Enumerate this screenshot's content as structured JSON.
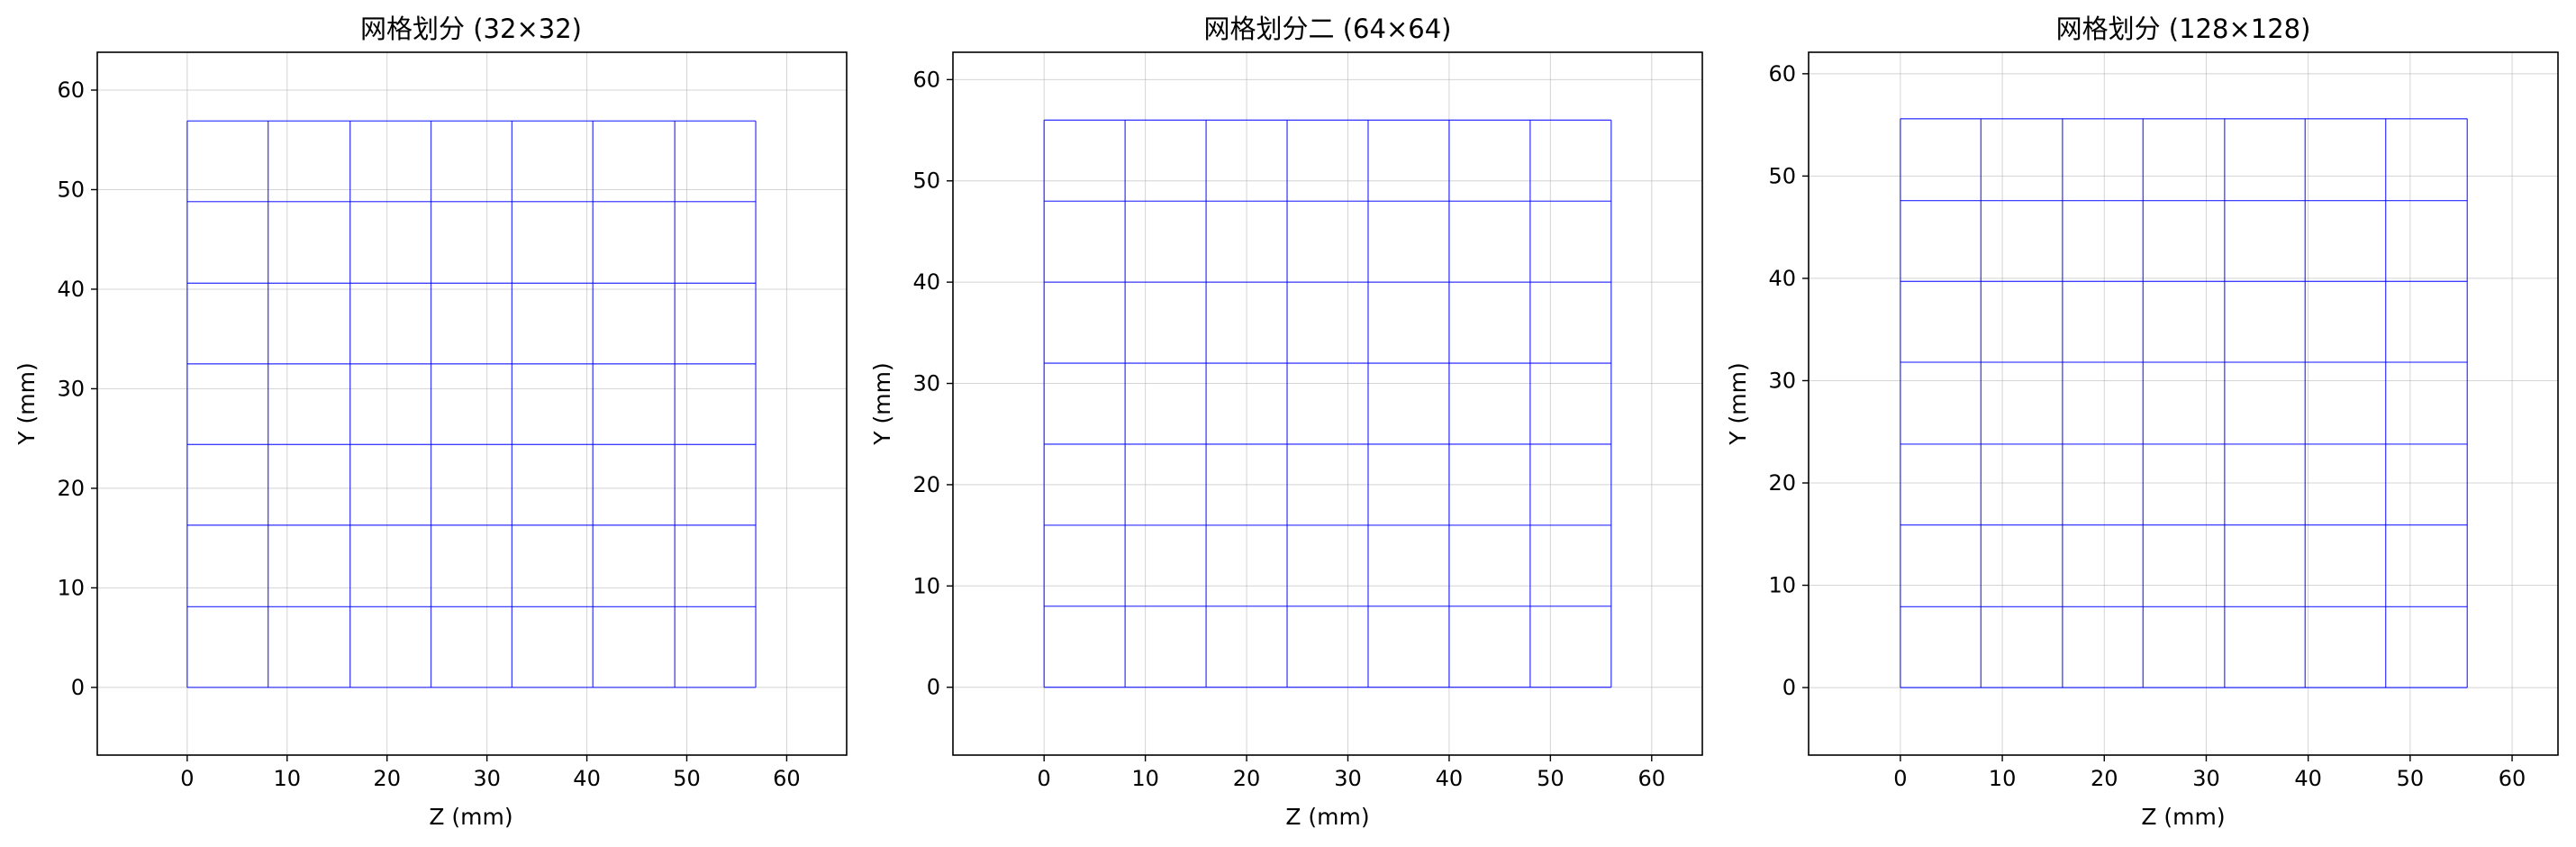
{
  "colors": {
    "mesh_line": "#0000ff",
    "grid": "#b0b0b0",
    "axes_frame": "#000000",
    "background": "#ffffff"
  },
  "chart_data": [
    {
      "type": "line",
      "title": "网格划分 (32×32)",
      "xlabel": "Z (mm)",
      "ylabel": "Y (mm)",
      "xlim": [
        -9,
        66
      ],
      "ylim": [
        -6.8,
        63.8
      ],
      "xticks": [
        0,
        10,
        20,
        30,
        40,
        50,
        60
      ],
      "yticks": [
        0,
        10,
        20,
        30,
        40,
        50,
        60
      ],
      "grid": true,
      "mesh_z": [
        0,
        8.1,
        16.3,
        24.4,
        32.5,
        40.6,
        48.8,
        56.9
      ],
      "mesh_y": [
        0,
        8.1,
        16.3,
        24.4,
        32.5,
        40.6,
        48.8,
        56.9
      ]
    },
    {
      "type": "line",
      "title": "网格划分二 (64×64)",
      "xlabel": "Z (mm)",
      "ylabel": "Y (mm)",
      "xlim": [
        -9,
        65
      ],
      "ylim": [
        -6.7,
        62.7
      ],
      "xticks": [
        0,
        10,
        20,
        30,
        40,
        50,
        60
      ],
      "yticks": [
        0,
        10,
        20,
        30,
        40,
        50,
        60
      ],
      "grid": true,
      "mesh_z": [
        0,
        8,
        16,
        24,
        32,
        40,
        48,
        56
      ],
      "mesh_y": [
        0,
        8,
        16,
        24,
        32,
        40,
        48,
        56
      ]
    },
    {
      "type": "line",
      "title": "网格划分 (128×128)",
      "xlabel": "Z (mm)",
      "ylabel": "Y (mm)",
      "xlim": [
        -9,
        64.5
      ],
      "ylim": [
        -6.6,
        62.1
      ],
      "xticks": [
        0,
        10,
        20,
        30,
        40,
        50,
        60
      ],
      "yticks": [
        0,
        10,
        20,
        30,
        40,
        50,
        60
      ],
      "grid": true,
      "mesh_z": [
        0,
        7.9,
        15.9,
        23.8,
        31.8,
        39.7,
        47.6,
        55.6
      ],
      "mesh_y": [
        0,
        7.9,
        15.9,
        23.8,
        31.8,
        39.7,
        47.6,
        55.6
      ]
    }
  ]
}
